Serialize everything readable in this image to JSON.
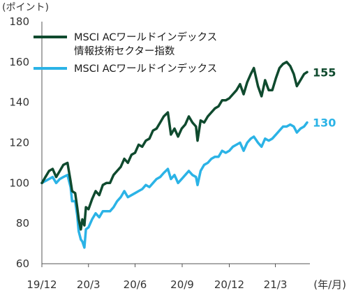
{
  "chart_data": {
    "type": "line",
    "ylabel": "(ポイント)",
    "xlabel": "(年/月)",
    "ylim": [
      60,
      180
    ],
    "yticks": [
      60,
      80,
      100,
      120,
      140,
      160,
      180
    ],
    "x_tick_labels": [
      "19/12",
      "20/3",
      "20/6",
      "20/9",
      "20/12",
      "21/3"
    ],
    "grid": false,
    "legend_position": "top-left",
    "series": [
      {
        "name": "MSCI ACワールドインデックス\n情報技術セクター指数",
        "color": "#0f4a2e",
        "end_label": "155",
        "values": [
          {
            "x": "2019-12-31",
            "y": 100
          },
          {
            "x": "2020-01-07",
            "y": 103
          },
          {
            "x": "2020-01-14",
            "y": 106
          },
          {
            "x": "2020-01-21",
            "y": 107
          },
          {
            "x": "2020-01-28",
            "y": 103
          },
          {
            "x": "2020-02-04",
            "y": 106
          },
          {
            "x": "2020-02-11",
            "y": 109
          },
          {
            "x": "2020-02-19",
            "y": 110
          },
          {
            "x": "2020-02-25",
            "y": 101
          },
          {
            "x": "2020-02-28",
            "y": 96
          },
          {
            "x": "2020-03-05",
            "y": 95
          },
          {
            "x": "2020-03-09",
            "y": 88
          },
          {
            "x": "2020-03-12",
            "y": 82
          },
          {
            "x": "2020-03-16",
            "y": 77
          },
          {
            "x": "2020-03-19",
            "y": 82
          },
          {
            "x": "2020-03-23",
            "y": 79
          },
          {
            "x": "2020-03-26",
            "y": 88
          },
          {
            "x": "2020-03-31",
            "y": 87
          },
          {
            "x": "2020-04-07",
            "y": 92
          },
          {
            "x": "2020-04-14",
            "y": 96
          },
          {
            "x": "2020-04-21",
            "y": 94
          },
          {
            "x": "2020-04-28",
            "y": 99
          },
          {
            "x": "2020-05-05",
            "y": 100
          },
          {
            "x": "2020-05-12",
            "y": 100
          },
          {
            "x": "2020-05-19",
            "y": 104
          },
          {
            "x": "2020-05-26",
            "y": 106
          },
          {
            "x": "2020-06-02",
            "y": 108
          },
          {
            "x": "2020-06-09",
            "y": 112
          },
          {
            "x": "2020-06-16",
            "y": 110
          },
          {
            "x": "2020-06-23",
            "y": 114
          },
          {
            "x": "2020-06-30",
            "y": 115
          },
          {
            "x": "2020-07-07",
            "y": 119
          },
          {
            "x": "2020-07-14",
            "y": 118
          },
          {
            "x": "2020-07-21",
            "y": 121
          },
          {
            "x": "2020-07-28",
            "y": 122
          },
          {
            "x": "2020-08-04",
            "y": 126
          },
          {
            "x": "2020-08-11",
            "y": 127
          },
          {
            "x": "2020-08-18",
            "y": 130
          },
          {
            "x": "2020-08-25",
            "y": 133
          },
          {
            "x": "2020-09-02",
            "y": 135
          },
          {
            "x": "2020-09-08",
            "y": 124
          },
          {
            "x": "2020-09-15",
            "y": 127
          },
          {
            "x": "2020-09-22",
            "y": 123
          },
          {
            "x": "2020-09-29",
            "y": 127
          },
          {
            "x": "2020-10-06",
            "y": 129
          },
          {
            "x": "2020-10-13",
            "y": 133
          },
          {
            "x": "2020-10-20",
            "y": 130
          },
          {
            "x": "2020-10-27",
            "y": 128
          },
          {
            "x": "2020-10-30",
            "y": 121
          },
          {
            "x": "2020-11-05",
            "y": 131
          },
          {
            "x": "2020-11-12",
            "y": 130
          },
          {
            "x": "2020-11-19",
            "y": 133
          },
          {
            "x": "2020-11-26",
            "y": 135
          },
          {
            "x": "2020-12-03",
            "y": 137
          },
          {
            "x": "2020-12-10",
            "y": 138
          },
          {
            "x": "2020-12-17",
            "y": 141
          },
          {
            "x": "2020-12-24",
            "y": 141
          },
          {
            "x": "2020-12-31",
            "y": 142
          },
          {
            "x": "2021-01-07",
            "y": 144
          },
          {
            "x": "2021-01-14",
            "y": 146
          },
          {
            "x": "2021-01-21",
            "y": 149
          },
          {
            "x": "2021-01-28",
            "y": 144
          },
          {
            "x": "2021-02-04",
            "y": 150
          },
          {
            "x": "2021-02-11",
            "y": 154
          },
          {
            "x": "2021-02-17",
            "y": 157
          },
          {
            "x": "2021-02-25",
            "y": 148
          },
          {
            "x": "2021-03-04",
            "y": 143
          },
          {
            "x": "2021-03-11",
            "y": 151
          },
          {
            "x": "2021-03-18",
            "y": 146
          },
          {
            "x": "2021-03-25",
            "y": 146
          },
          {
            "x": "2021-04-01",
            "y": 152
          },
          {
            "x": "2021-04-08",
            "y": 157
          },
          {
            "x": "2021-04-15",
            "y": 159
          },
          {
            "x": "2021-04-22",
            "y": 160
          },
          {
            "x": "2021-04-29",
            "y": 158
          },
          {
            "x": "2021-05-06",
            "y": 154
          },
          {
            "x": "2021-05-12",
            "y": 148
          },
          {
            "x": "2021-05-19",
            "y": 151
          },
          {
            "x": "2021-05-26",
            "y": 154
          },
          {
            "x": "2021-06-01",
            "y": 155
          }
        ]
      },
      {
        "name": "MSCI ACワールドインデックス",
        "color": "#2bb3e6",
        "end_label": "130",
        "values": [
          {
            "x": "2019-12-31",
            "y": 100
          },
          {
            "x": "2020-01-07",
            "y": 101
          },
          {
            "x": "2020-01-14",
            "y": 102
          },
          {
            "x": "2020-01-21",
            "y": 103
          },
          {
            "x": "2020-01-28",
            "y": 100
          },
          {
            "x": "2020-02-04",
            "y": 102
          },
          {
            "x": "2020-02-11",
            "y": 103
          },
          {
            "x": "2020-02-19",
            "y": 104
          },
          {
            "x": "2020-02-25",
            "y": 98
          },
          {
            "x": "2020-02-28",
            "y": 91
          },
          {
            "x": "2020-03-05",
            "y": 91
          },
          {
            "x": "2020-03-09",
            "y": 84
          },
          {
            "x": "2020-03-12",
            "y": 76
          },
          {
            "x": "2020-03-16",
            "y": 72
          },
          {
            "x": "2020-03-19",
            "y": 71
          },
          {
            "x": "2020-03-23",
            "y": 68
          },
          {
            "x": "2020-03-26",
            "y": 77
          },
          {
            "x": "2020-03-31",
            "y": 78
          },
          {
            "x": "2020-04-07",
            "y": 82
          },
          {
            "x": "2020-04-14",
            "y": 85
          },
          {
            "x": "2020-04-21",
            "y": 83
          },
          {
            "x": "2020-04-28",
            "y": 86
          },
          {
            "x": "2020-05-05",
            "y": 86
          },
          {
            "x": "2020-05-12",
            "y": 86
          },
          {
            "x": "2020-05-19",
            "y": 88
          },
          {
            "x": "2020-05-26",
            "y": 91
          },
          {
            "x": "2020-06-02",
            "y": 93
          },
          {
            "x": "2020-06-09",
            "y": 96
          },
          {
            "x": "2020-06-16",
            "y": 93
          },
          {
            "x": "2020-06-23",
            "y": 94
          },
          {
            "x": "2020-06-30",
            "y": 95
          },
          {
            "x": "2020-07-07",
            "y": 96
          },
          {
            "x": "2020-07-14",
            "y": 97
          },
          {
            "x": "2020-07-21",
            "y": 99
          },
          {
            "x": "2020-07-28",
            "y": 98
          },
          {
            "x": "2020-08-04",
            "y": 100
          },
          {
            "x": "2020-08-11",
            "y": 102
          },
          {
            "x": "2020-08-18",
            "y": 103
          },
          {
            "x": "2020-08-25",
            "y": 105
          },
          {
            "x": "2020-09-02",
            "y": 107
          },
          {
            "x": "2020-09-08",
            "y": 102
          },
          {
            "x": "2020-09-15",
            "y": 104
          },
          {
            "x": "2020-09-22",
            "y": 100
          },
          {
            "x": "2020-09-29",
            "y": 102
          },
          {
            "x": "2020-10-06",
            "y": 104
          },
          {
            "x": "2020-10-13",
            "y": 106
          },
          {
            "x": "2020-10-20",
            "y": 104
          },
          {
            "x": "2020-10-27",
            "y": 103
          },
          {
            "x": "2020-10-30",
            "y": 99
          },
          {
            "x": "2020-11-05",
            "y": 106
          },
          {
            "x": "2020-11-12",
            "y": 109
          },
          {
            "x": "2020-11-19",
            "y": 110
          },
          {
            "x": "2020-11-26",
            "y": 112
          },
          {
            "x": "2020-12-03",
            "y": 113
          },
          {
            "x": "2020-12-10",
            "y": 113
          },
          {
            "x": "2020-12-17",
            "y": 116
          },
          {
            "x": "2020-12-24",
            "y": 115
          },
          {
            "x": "2020-12-31",
            "y": 116
          },
          {
            "x": "2021-01-07",
            "y": 118
          },
          {
            "x": "2021-01-14",
            "y": 119
          },
          {
            "x": "2021-01-21",
            "y": 120
          },
          {
            "x": "2021-01-28",
            "y": 116
          },
          {
            "x": "2021-02-04",
            "y": 120
          },
          {
            "x": "2021-02-11",
            "y": 122
          },
          {
            "x": "2021-02-17",
            "y": 123
          },
          {
            "x": "2021-02-25",
            "y": 120
          },
          {
            "x": "2021-03-04",
            "y": 118
          },
          {
            "x": "2021-03-11",
            "y": 122
          },
          {
            "x": "2021-03-18",
            "y": 121
          },
          {
            "x": "2021-03-25",
            "y": 122
          },
          {
            "x": "2021-04-01",
            "y": 124
          },
          {
            "x": "2021-04-08",
            "y": 126
          },
          {
            "x": "2021-04-15",
            "y": 128
          },
          {
            "x": "2021-04-22",
            "y": 128
          },
          {
            "x": "2021-04-29",
            "y": 129
          },
          {
            "x": "2021-05-06",
            "y": 128
          },
          {
            "x": "2021-05-12",
            "y": 125
          },
          {
            "x": "2021-05-19",
            "y": 127
          },
          {
            "x": "2021-05-26",
            "y": 128
          },
          {
            "x": "2021-06-01",
            "y": 130
          }
        ]
      }
    ]
  }
}
